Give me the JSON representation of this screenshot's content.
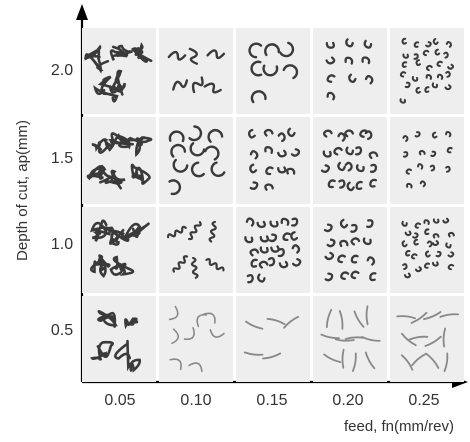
{
  "axes": {
    "y_label": "Depth of cut, ap(mm)",
    "x_label": "feed, fn(mm/rev)",
    "y_ticks": [
      "2.0",
      "1.5",
      "1.0",
      "0.5"
    ],
    "x_ticks": [
      "0.05",
      "0.10",
      "0.15",
      "0.20",
      "0.25"
    ]
  },
  "grid": {
    "rows": [
      {
        "ap": "2.0",
        "cells": [
          {
            "fn": "0.05",
            "chip_form": "snarled",
            "pieces": 5
          },
          {
            "fn": "0.10",
            "chip_form": "loose-tangles",
            "pieces": 6
          },
          {
            "fn": "0.15",
            "chip_form": "c-shaped",
            "pieces": 7
          },
          {
            "fn": "0.20",
            "chip_form": "comma",
            "pieces": 10
          },
          {
            "fn": "0.25",
            "chip_form": "short-comma",
            "pieces": 26
          }
        ]
      },
      {
        "ap": "1.5",
        "cells": [
          {
            "fn": "0.05",
            "chip_form": "snarled",
            "pieces": 6
          },
          {
            "fn": "0.10",
            "chip_form": "c-shaped",
            "pieces": 10
          },
          {
            "fn": "0.15",
            "chip_form": "comma",
            "pieces": 14
          },
          {
            "fn": "0.20",
            "chip_form": "comma",
            "pieces": 20
          },
          {
            "fn": "0.25",
            "chip_form": "short-comma",
            "pieces": 14
          }
        ]
      },
      {
        "ap": "1.0",
        "cells": [
          {
            "fn": "0.05",
            "chip_form": "snarled",
            "pieces": 5
          },
          {
            "fn": "0.10",
            "chip_form": "short-helical",
            "pieces": 6
          },
          {
            "fn": "0.15",
            "chip_form": "comma",
            "pieces": 22
          },
          {
            "fn": "0.20",
            "chip_form": "comma",
            "pieces": 16
          },
          {
            "fn": "0.25",
            "chip_form": "short-comma",
            "pieces": 26
          }
        ]
      },
      {
        "ap": "0.5",
        "cells": [
          {
            "fn": "0.05",
            "chip_form": "long-snarled",
            "pieces": 4
          },
          {
            "fn": "0.10",
            "chip_form": "arc",
            "pieces": 8
          },
          {
            "fn": "0.15",
            "chip_form": "straight-arc",
            "pieces": 5
          },
          {
            "fn": "0.20",
            "chip_form": "straight-arc",
            "pieces": 12
          },
          {
            "fn": "0.25",
            "chip_form": "straight-arc",
            "pieces": 12
          }
        ]
      }
    ]
  },
  "colors": {
    "axis": "#000000",
    "cell_background": "#eeeeee",
    "grid_line": "#d9d9d9",
    "chip": "#3a3a3a",
    "chip_light": "#888888"
  }
}
